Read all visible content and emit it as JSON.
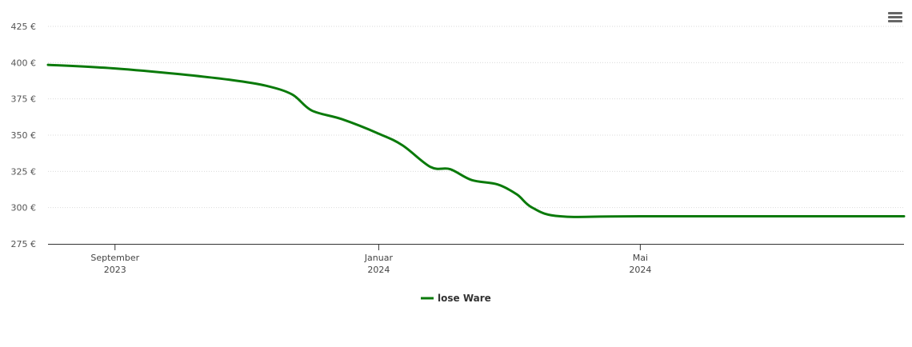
{
  "menu": {
    "icon": "hamburger-menu-icon"
  },
  "colors": {
    "series": "#0a7a0a",
    "grid": "#d9d9d9",
    "axis": "#333333"
  },
  "chart_data": {
    "type": "line",
    "title": "",
    "xlabel": "",
    "ylabel": "",
    "ylim": [
      275,
      425
    ],
    "xlim": [
      "2023-08-01",
      "2024-08-31"
    ],
    "y_ticks": [
      {
        "value": 275,
        "label": "275 €"
      },
      {
        "value": 300,
        "label": "300 €"
      },
      {
        "value": 325,
        "label": "325 €"
      },
      {
        "value": 350,
        "label": "350 €"
      },
      {
        "value": 375,
        "label": "375 €"
      },
      {
        "value": 400,
        "label": "400 €"
      },
      {
        "value": 425,
        "label": "425 €"
      }
    ],
    "x_ticks": [
      {
        "date": "2023-09-01",
        "month": "September",
        "year": "2023"
      },
      {
        "date": "2024-01-01",
        "month": "Januar",
        "year": "2024"
      },
      {
        "date": "2024-05-01",
        "month": "Mai",
        "year": "2024"
      }
    ],
    "grid": true,
    "legend": {
      "position": "bottom-center"
    },
    "series": [
      {
        "name": "lose Ware",
        "color": "#0a7a0a",
        "points": [
          {
            "x": "2023-08-01",
            "y": 398.5
          },
          {
            "x": "2023-09-01",
            "y": 396.0
          },
          {
            "x": "2023-10-01",
            "y": 392.0
          },
          {
            "x": "2023-10-25",
            "y": 388.0
          },
          {
            "x": "2023-11-10",
            "y": 384.0
          },
          {
            "x": "2023-11-22",
            "y": 378.0
          },
          {
            "x": "2023-12-01",
            "y": 367.0
          },
          {
            "x": "2023-12-15",
            "y": 361.0
          },
          {
            "x": "2024-01-01",
            "y": 351.0
          },
          {
            "x": "2024-01-12",
            "y": 343.0
          },
          {
            "x": "2024-01-25",
            "y": 328.0
          },
          {
            "x": "2024-02-03",
            "y": 326.5
          },
          {
            "x": "2024-02-13",
            "y": 319.0
          },
          {
            "x": "2024-02-25",
            "y": 316.0
          },
          {
            "x": "2024-03-05",
            "y": 309.0
          },
          {
            "x": "2024-03-12",
            "y": 300.0
          },
          {
            "x": "2024-03-25",
            "y": 294.0
          },
          {
            "x": "2024-05-01",
            "y": 294.0
          },
          {
            "x": "2024-08-31",
            "y": 294.0
          }
        ]
      }
    ]
  }
}
